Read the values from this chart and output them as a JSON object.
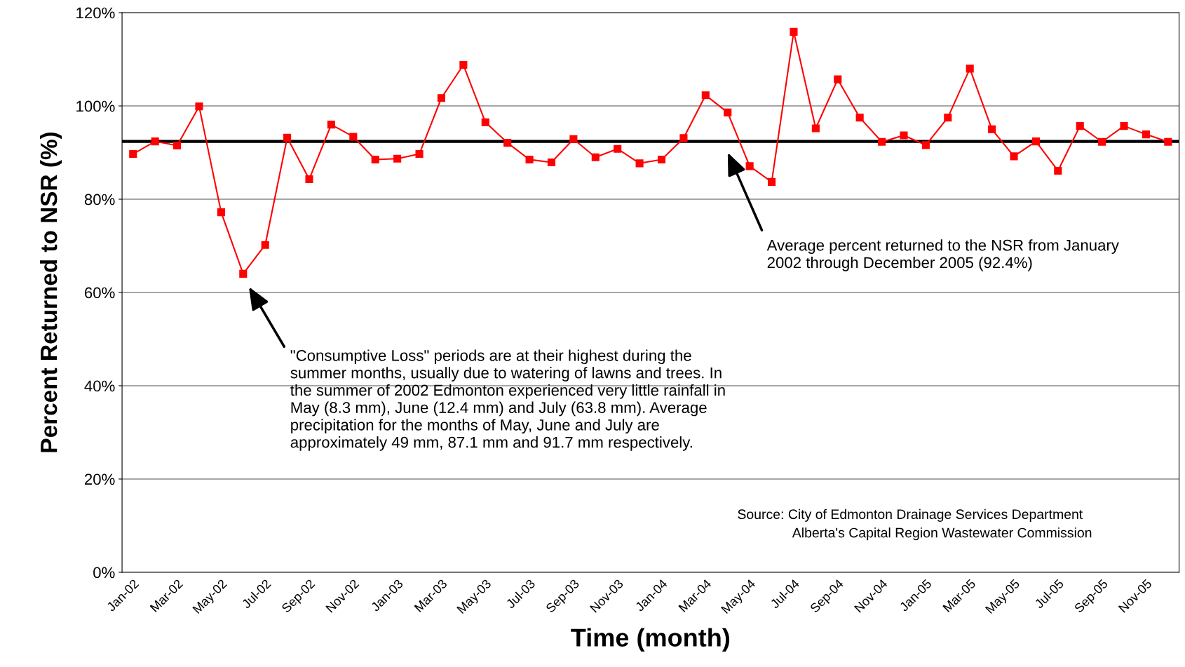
{
  "chart_data": {
    "type": "line",
    "xlabel": "Time (month)",
    "ylabel": "Percent Returned to NSR (%)",
    "categories": [
      "Jan-02",
      null,
      "Mar-02",
      null,
      "May-02",
      null,
      "Jul-02",
      null,
      "Sep-02",
      null,
      "Nov-02",
      null,
      "Jan-03",
      null,
      "Mar-03",
      null,
      "May-03",
      null,
      "Jul-03",
      null,
      "Sep-03",
      null,
      "Nov-03",
      null,
      "Jan-04",
      null,
      "Mar-04",
      null,
      "May-04",
      null,
      "Jul-04",
      null,
      "Sep-04",
      null,
      "Nov-04",
      null,
      "Jan-05",
      null,
      "Mar-05",
      null,
      "May-05",
      null,
      "Jul-05",
      null,
      "Sep-05",
      null,
      "Nov-05",
      null
    ],
    "series": [
      {
        "color": "#ff0000",
        "values": [
          89.7,
          92.4,
          91.5,
          99.9,
          77.2,
          64.0,
          70.2,
          93.2,
          84.3,
          96.0,
          93.4,
          88.5,
          88.7,
          89.7,
          101.7,
          108.8,
          96.5,
          92.1,
          88.5,
          87.9,
          92.9,
          89.0,
          90.8,
          87.7,
          88.5,
          93.1,
          102.3,
          98.6,
          87.1,
          83.7,
          115.9,
          95.2,
          105.7,
          97.5,
          92.3,
          93.7,
          91.6,
          97.5,
          108.0,
          95.0,
          89.2,
          92.4,
          86.1,
          95.7,
          92.3,
          95.7,
          93.9,
          92.3
        ]
      }
    ],
    "ylim": [
      0,
      120
    ],
    "yticks": [
      {
        "value": 0,
        "label": "0%"
      },
      {
        "value": 20,
        "label": "20%"
      },
      {
        "value": 40,
        "label": "40%"
      },
      {
        "value": 60,
        "label": "60%"
      },
      {
        "value": 80,
        "label": "80%"
      },
      {
        "value": 100,
        "label": "100%"
      },
      {
        "value": 120,
        "label": "120%"
      }
    ],
    "ref_lines": [
      {
        "axis": "y",
        "value": 92.4,
        "color": "#000000",
        "line_style": "solid"
      }
    ],
    "grid": "y",
    "marker": "square",
    "line_style": "solid",
    "legend": false,
    "annotations": [
      "\"Consumptive Loss\" periods are at their highest during the\nsummer months, usually due to watering of lawns and trees. In\nthe summer of 2002 Edmonton experienced very little rainfall in\nMay (8.3 mm), June (12.4 mm) and July (63.8 mm). Average\nprecipitation for the months of May, June and July are\napproximately 49 mm, 87.1 mm and 91.7 mm respectively.",
      "Average percent returned to the NSR from January\n2002 through December 2005 (92.4%)",
      "Source: City of Edmonton Drainage Services Department",
      "Alberta's Capital Region Wastewater Commission"
    ]
  }
}
